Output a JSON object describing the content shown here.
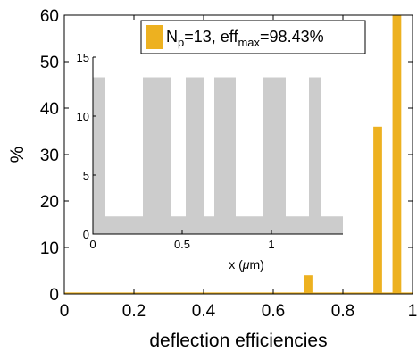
{
  "chart_data": [
    {
      "type": "bar",
      "role": "main",
      "xlabel": "deflection efficiencies",
      "ylabel": "%",
      "xlim": [
        0,
        1
      ],
      "ylim": [
        0,
        60
      ],
      "xticks": [
        0,
        0.2,
        0.4,
        0.6,
        0.8,
        1
      ],
      "xtick_labels": [
        "0",
        "0.2",
        "0.4",
        "0.6",
        "0.8",
        "1"
      ],
      "yticks": [
        0,
        10,
        20,
        30,
        40,
        50,
        60
      ],
      "ytick_labels": [
        "0",
        "10",
        "20",
        "30",
        "40",
        "50",
        "60"
      ],
      "bar_width": 0.025,
      "bars": [
        {
          "x": 0.7,
          "value": 4.0
        },
        {
          "x": 0.9,
          "value": 36.0
        },
        {
          "x": 0.955,
          "value": 60.0
        }
      ],
      "baseline_series_range": [
        0,
        1
      ],
      "legend": {
        "position": "top-right",
        "label_main": "N",
        "label_sub1": "p",
        "label_mid": "=13, eff",
        "label_sub2": "max",
        "label_end": "=98.43%"
      },
      "colors": {
        "bar": "#EDB120",
        "axis": "#000000",
        "background": "#ffffff"
      }
    },
    {
      "type": "area",
      "role": "inset",
      "xlabel_prefix": "x (",
      "xlabel_mu": "μ",
      "xlabel_suffix": "m)",
      "xlim": [
        0,
        1.4
      ],
      "ylim": [
        0,
        15
      ],
      "xticks": [
        0,
        0.5,
        1
      ],
      "xtick_labels": [
        "0",
        "0.5",
        "1"
      ],
      "yticks": [
        0,
        5,
        10,
        15
      ],
      "ytick_labels": [
        "0",
        "5",
        "10",
        "15"
      ],
      "base_height": 1.5,
      "pillar_height": 13.3,
      "pillars": [
        [
          0.0,
          0.07
        ],
        [
          0.28,
          0.44
        ],
        [
          0.52,
          0.62
        ],
        [
          0.68,
          0.8
        ],
        [
          0.95,
          1.08
        ],
        [
          1.21,
          1.28
        ]
      ],
      "colors": {
        "fill": "#cccccc",
        "axis": "#000000"
      }
    }
  ]
}
